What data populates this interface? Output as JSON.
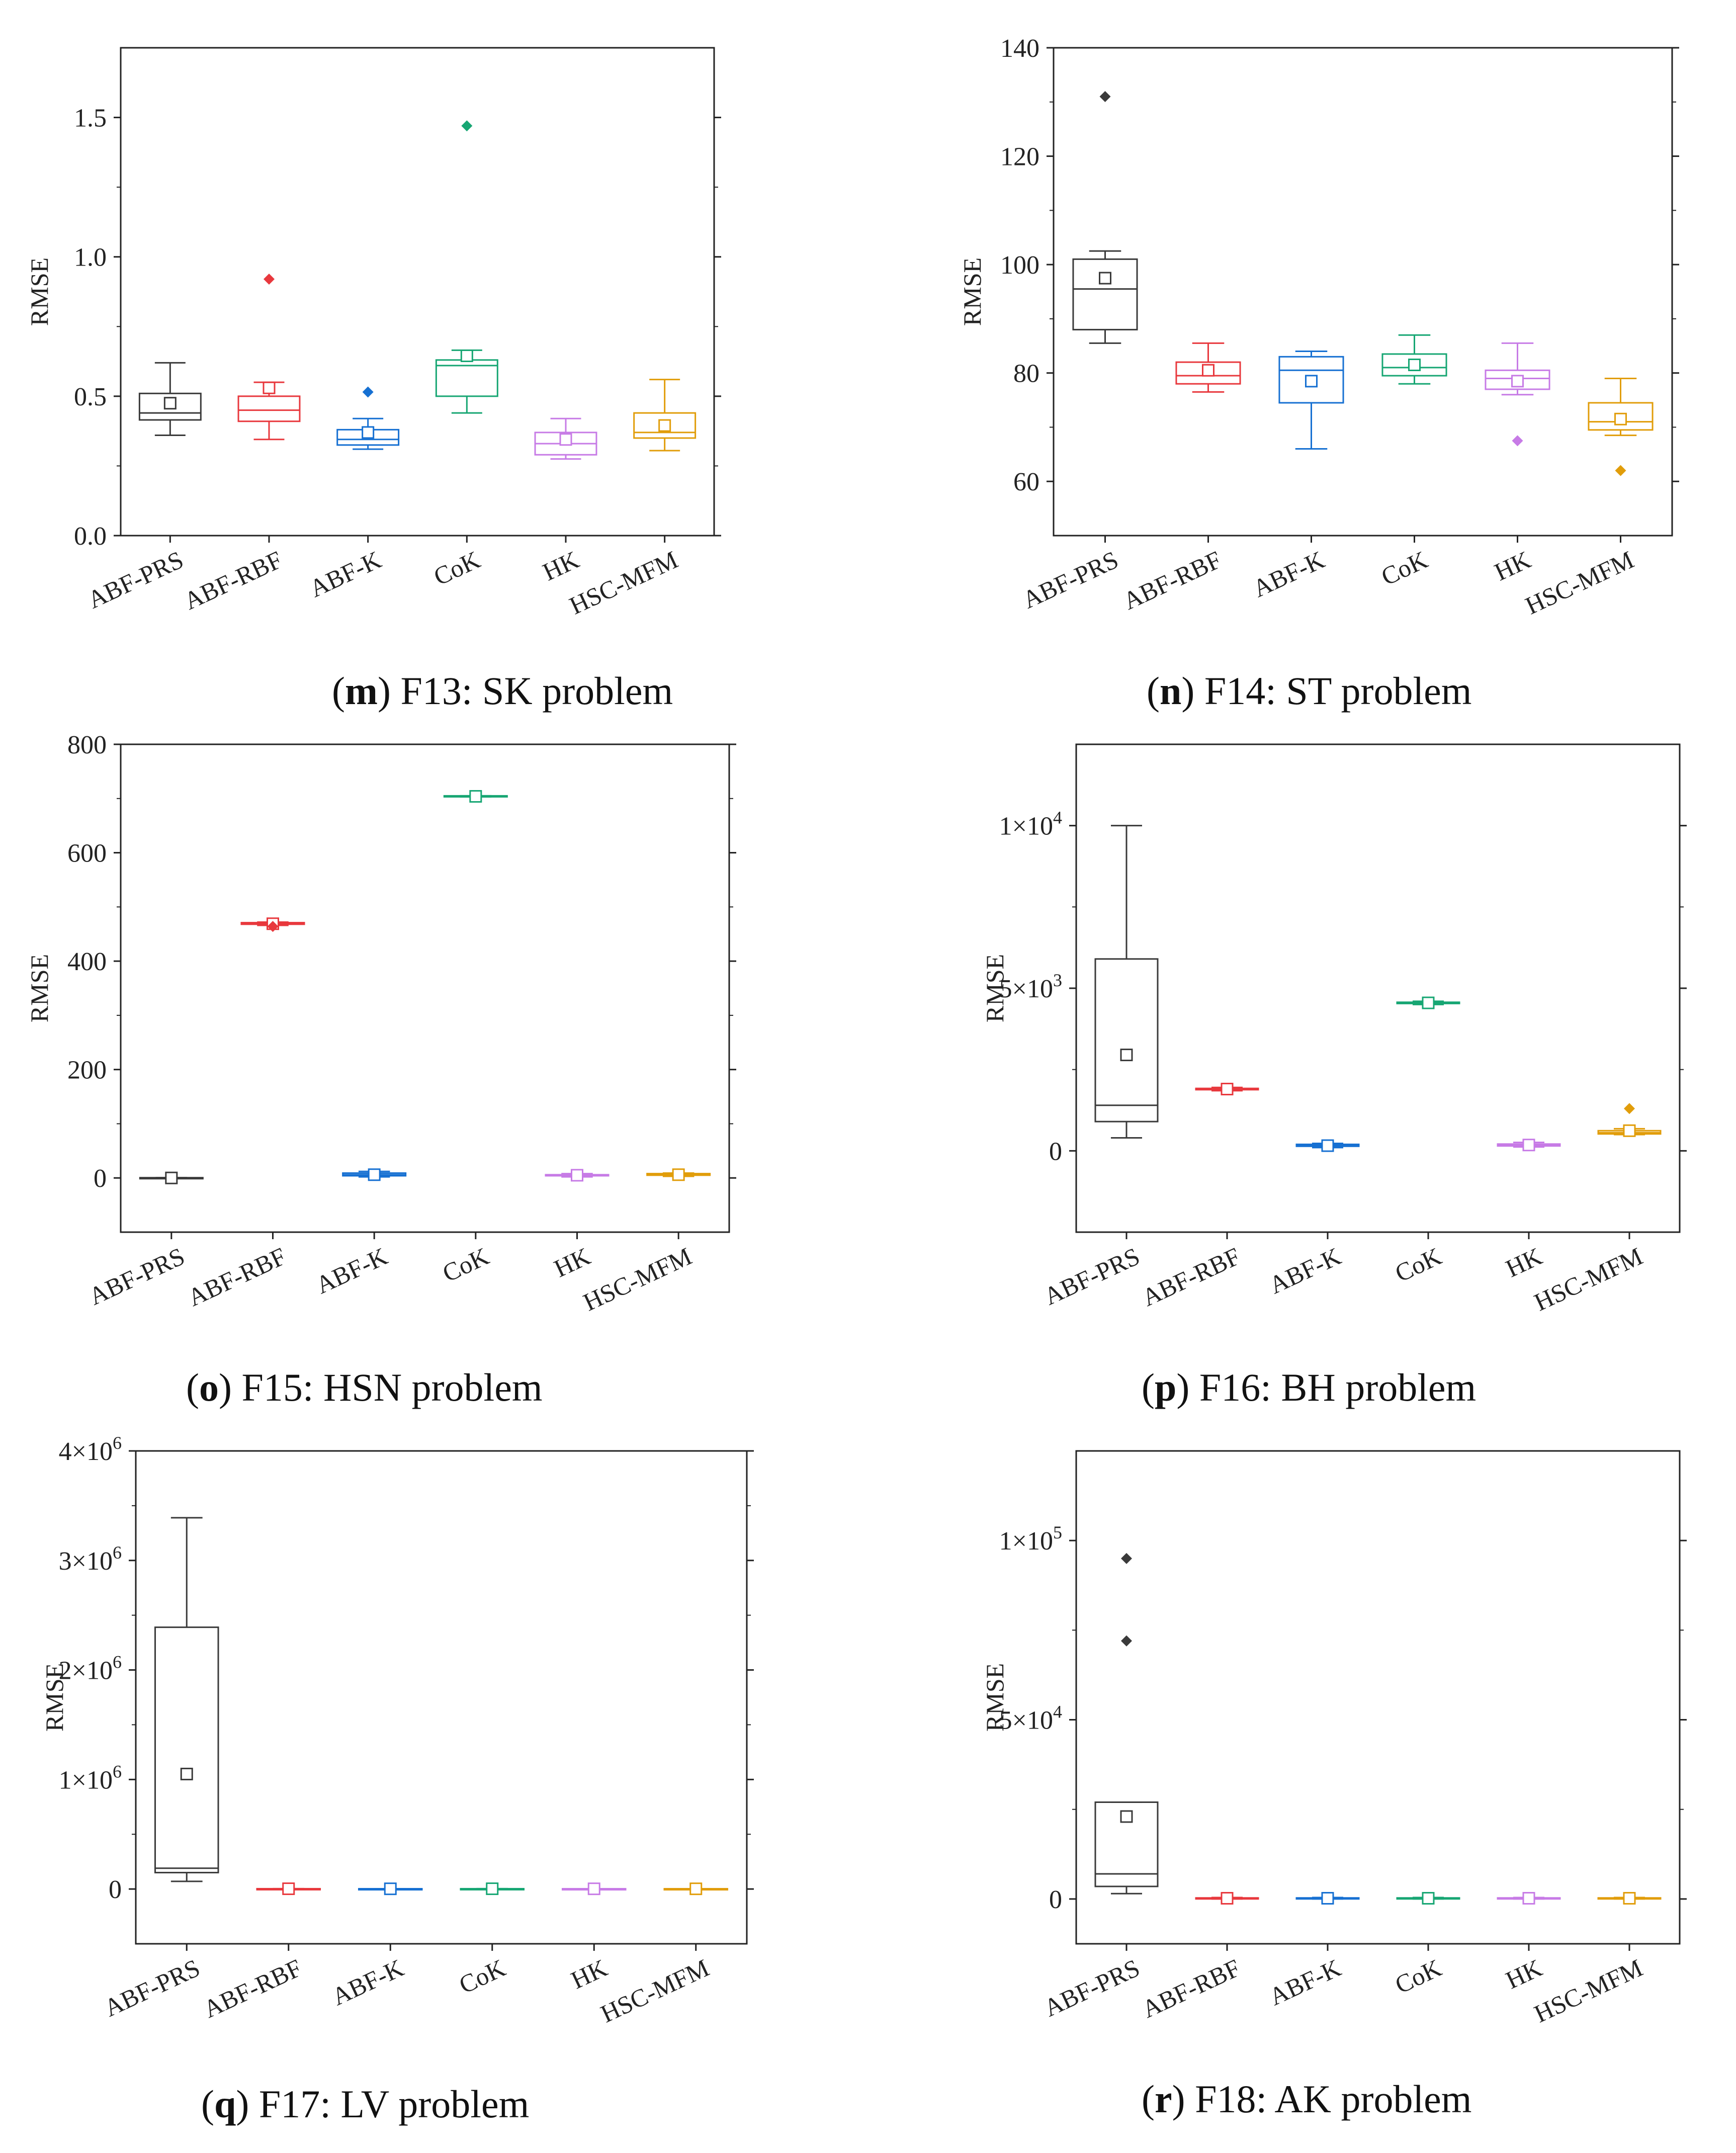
{
  "categories": [
    "ABF-PRS",
    "ABF-RBF",
    "ABF-K",
    "CoK",
    "HK",
    "HSC-MFM"
  ],
  "colors": [
    "#3a3a3a",
    "#e8383d",
    "#1670d2",
    "#17a673",
    "#c77be6",
    "#e19d0a"
  ],
  "chart_data": [
    {
      "id": "m",
      "type": "box",
      "ylabel": "RMSE",
      "caption": {
        "letter": "m",
        "text": ") F13: SK problem"
      },
      "ylim": [
        0,
        1.75
      ],
      "yticks": [
        0,
        0.5,
        1.0,
        1.5
      ],
      "ytick_labels": [
        "0.0",
        "0.5",
        "1.0",
        "1.5"
      ],
      "boxes": [
        {
          "min": 0.36,
          "q1": 0.415,
          "median": 0.44,
          "q3": 0.51,
          "max": 0.62,
          "mean": 0.475,
          "outliers": []
        },
        {
          "min": 0.345,
          "q1": 0.41,
          "median": 0.45,
          "q3": 0.5,
          "max": 0.55,
          "mean": 0.53,
          "outliers": [
            0.92
          ]
        },
        {
          "min": 0.31,
          "q1": 0.325,
          "median": 0.345,
          "q3": 0.38,
          "max": 0.42,
          "mean": 0.37,
          "outliers": [
            0.515
          ]
        },
        {
          "min": 0.44,
          "q1": 0.5,
          "median": 0.61,
          "q3": 0.63,
          "max": 0.665,
          "mean": 0.645,
          "outliers": [
            1.47
          ]
        },
        {
          "min": 0.275,
          "q1": 0.29,
          "median": 0.33,
          "q3": 0.37,
          "max": 0.42,
          "mean": 0.345,
          "outliers": []
        },
        {
          "min": 0.305,
          "q1": 0.35,
          "median": 0.37,
          "q3": 0.44,
          "max": 0.56,
          "mean": 0.395,
          "outliers": []
        }
      ]
    },
    {
      "id": "n",
      "type": "box",
      "ylabel": "RMSE",
      "caption": {
        "letter": "n",
        "text": ") F14: ST problem"
      },
      "ylim": [
        50,
        140
      ],
      "yticks": [
        60,
        80,
        100,
        120,
        140
      ],
      "ytick_labels": [
        "60",
        "80",
        "100",
        "120",
        "140"
      ],
      "boxes": [
        {
          "min": 85.5,
          "q1": 88,
          "median": 95.5,
          "q3": 101,
          "max": 102.5,
          "mean": 97.5,
          "outliers": [
            131
          ]
        },
        {
          "min": 76.5,
          "q1": 78,
          "median": 79.5,
          "q3": 82,
          "max": 85.5,
          "mean": 80.5,
          "outliers": []
        },
        {
          "min": 66,
          "q1": 74.5,
          "median": 80.5,
          "q3": 83,
          "max": 84,
          "mean": 78.5,
          "outliers": []
        },
        {
          "min": 78,
          "q1": 79.5,
          "median": 81,
          "q3": 83.5,
          "max": 87,
          "mean": 81.5,
          "outliers": []
        },
        {
          "min": 76,
          "q1": 77,
          "median": 79,
          "q3": 80.5,
          "max": 85.5,
          "mean": 78.5,
          "outliers": [
            67.5
          ]
        },
        {
          "min": 68.5,
          "q1": 69.5,
          "median": 71,
          "q3": 74.5,
          "max": 79,
          "mean": 71.5,
          "outliers": [
            62
          ]
        }
      ]
    },
    {
      "id": "o",
      "type": "box",
      "ylabel": "RMSE",
      "caption": {
        "letter": "o",
        "text": ") F15: HSN problem"
      },
      "ylim": [
        -100,
        800
      ],
      "yticks": [
        0,
        200,
        400,
        600,
        800
      ],
      "ytick_labels": [
        "0",
        "200",
        "400",
        "600",
        "800"
      ],
      "boxes": [
        {
          "min": 0,
          "q1": 0,
          "median": 0,
          "q3": 0.5,
          "max": 0.5,
          "mean": 0,
          "outliers": []
        },
        {
          "min": 466,
          "q1": 468,
          "median": 470,
          "q3": 471,
          "max": 472,
          "mean": 469,
          "outliers": [
            464
          ]
        },
        {
          "min": 2,
          "q1": 4,
          "median": 6,
          "q3": 9,
          "max": 12,
          "mean": 6,
          "outliers": []
        },
        {
          "min": 703,
          "q1": 704,
          "median": 704,
          "q3": 705,
          "max": 705,
          "mean": 704,
          "outliers": []
        },
        {
          "min": 2,
          "q1": 4,
          "median": 5,
          "q3": 6,
          "max": 8,
          "mean": 5,
          "outliers": []
        },
        {
          "min": 3,
          "q1": 5,
          "median": 6,
          "q3": 8,
          "max": 9,
          "mean": 6,
          "outliers": []
        }
      ]
    },
    {
      "id": "p",
      "type": "box",
      "ylabel": "RMSE",
      "caption": {
        "letter": "p",
        "text": ") F16: BH problem"
      },
      "ylim": [
        -2500,
        12500
      ],
      "yticks": [
        0,
        5000,
        10000
      ],
      "ytick_labels": [
        {
          "base": "0",
          "exp": ""
        },
        {
          "base": "5×10",
          "exp": "3"
        },
        {
          "base": "1×10",
          "exp": "4"
        }
      ],
      "boxes": [
        {
          "min": 400,
          "q1": 900,
          "median": 1400,
          "q3": 5900,
          "max": 10000,
          "mean": 2950,
          "outliers": []
        },
        {
          "min": 1850,
          "q1": 1880,
          "median": 1900,
          "q3": 1920,
          "max": 1950,
          "mean": 1900,
          "outliers": []
        },
        {
          "min": 100,
          "q1": 140,
          "median": 170,
          "q3": 200,
          "max": 230,
          "mean": 160,
          "outliers": []
        },
        {
          "min": 4500,
          "q1": 4530,
          "median": 4550,
          "q3": 4570,
          "max": 4600,
          "mean": 4550,
          "outliers": []
        },
        {
          "min": 120,
          "q1": 150,
          "median": 180,
          "q3": 210,
          "max": 260,
          "mean": 180,
          "outliers": []
        },
        {
          "min": 500,
          "q1": 520,
          "median": 560,
          "q3": 620,
          "max": 680,
          "mean": 620,
          "outliers": [
            1300
          ]
        }
      ]
    },
    {
      "id": "q",
      "type": "box",
      "ylabel": "RMSE",
      "caption": {
        "letter": "q",
        "text": ") F17: LV problem"
      },
      "ylim": [
        -500000,
        4000000
      ],
      "yticks": [
        0,
        1000000,
        2000000,
        3000000,
        4000000
      ],
      "ytick_labels": [
        {
          "base": "0",
          "exp": ""
        },
        {
          "base": "1×10",
          "exp": "6"
        },
        {
          "base": "2×10",
          "exp": "6"
        },
        {
          "base": "3×10",
          "exp": "6"
        },
        {
          "base": "4×10",
          "exp": "6"
        }
      ],
      "boxes": [
        {
          "min": 70000,
          "q1": 150000,
          "median": 190000,
          "q3": 2390000,
          "max": 3390000,
          "mean": 1050000,
          "outliers": []
        },
        {
          "min": 1500,
          "q1": 2000,
          "median": 2500,
          "q3": 3000,
          "max": 3500,
          "mean": 2500,
          "outliers": []
        },
        {
          "min": 1000,
          "q1": 1500,
          "median": 2000,
          "q3": 2500,
          "max": 3000,
          "mean": 2000,
          "outliers": []
        },
        {
          "min": 1500,
          "q1": 2000,
          "median": 2500,
          "q3": 3000,
          "max": 3500,
          "mean": 2500,
          "outliers": []
        },
        {
          "min": 1000,
          "q1": 1500,
          "median": 2000,
          "q3": 2500,
          "max": 3000,
          "mean": 2000,
          "outliers": []
        },
        {
          "min": 1000,
          "q1": 1500,
          "median": 2000,
          "q3": 2500,
          "max": 3000,
          "mean": 2000,
          "outliers": []
        }
      ]
    },
    {
      "id": "r",
      "type": "box",
      "ylabel": "RMSE",
      "caption": {
        "letter": "r",
        "text": ") F18: AK problem"
      },
      "ylim": [
        -12500,
        125000
      ],
      "yticks": [
        0,
        50000,
        100000
      ],
      "ytick_labels": [
        {
          "base": "0",
          "exp": ""
        },
        {
          "base": "5×10",
          "exp": "4"
        },
        {
          "base": "1×10",
          "exp": "5"
        }
      ],
      "boxes": [
        {
          "min": 1500,
          "q1": 3500,
          "median": 7000,
          "q3": 27000,
          "max": 27000,
          "mean": 23000,
          "outliers": [
            72000,
            95000
          ]
        },
        {
          "min": 0,
          "q1": 100,
          "median": 200,
          "q3": 300,
          "max": 400,
          "mean": 200,
          "outliers": []
        },
        {
          "min": 0,
          "q1": 100,
          "median": 200,
          "q3": 300,
          "max": 400,
          "mean": 200,
          "outliers": []
        },
        {
          "min": 0,
          "q1": 100,
          "median": 200,
          "q3": 300,
          "max": 400,
          "mean": 200,
          "outliers": []
        },
        {
          "min": 0,
          "q1": 100,
          "median": 200,
          "q3": 300,
          "max": 400,
          "mean": 200,
          "outliers": []
        },
        {
          "min": 0,
          "q1": 100,
          "median": 200,
          "q3": 300,
          "max": 400,
          "mean": 200,
          "outliers": []
        }
      ]
    }
  ]
}
